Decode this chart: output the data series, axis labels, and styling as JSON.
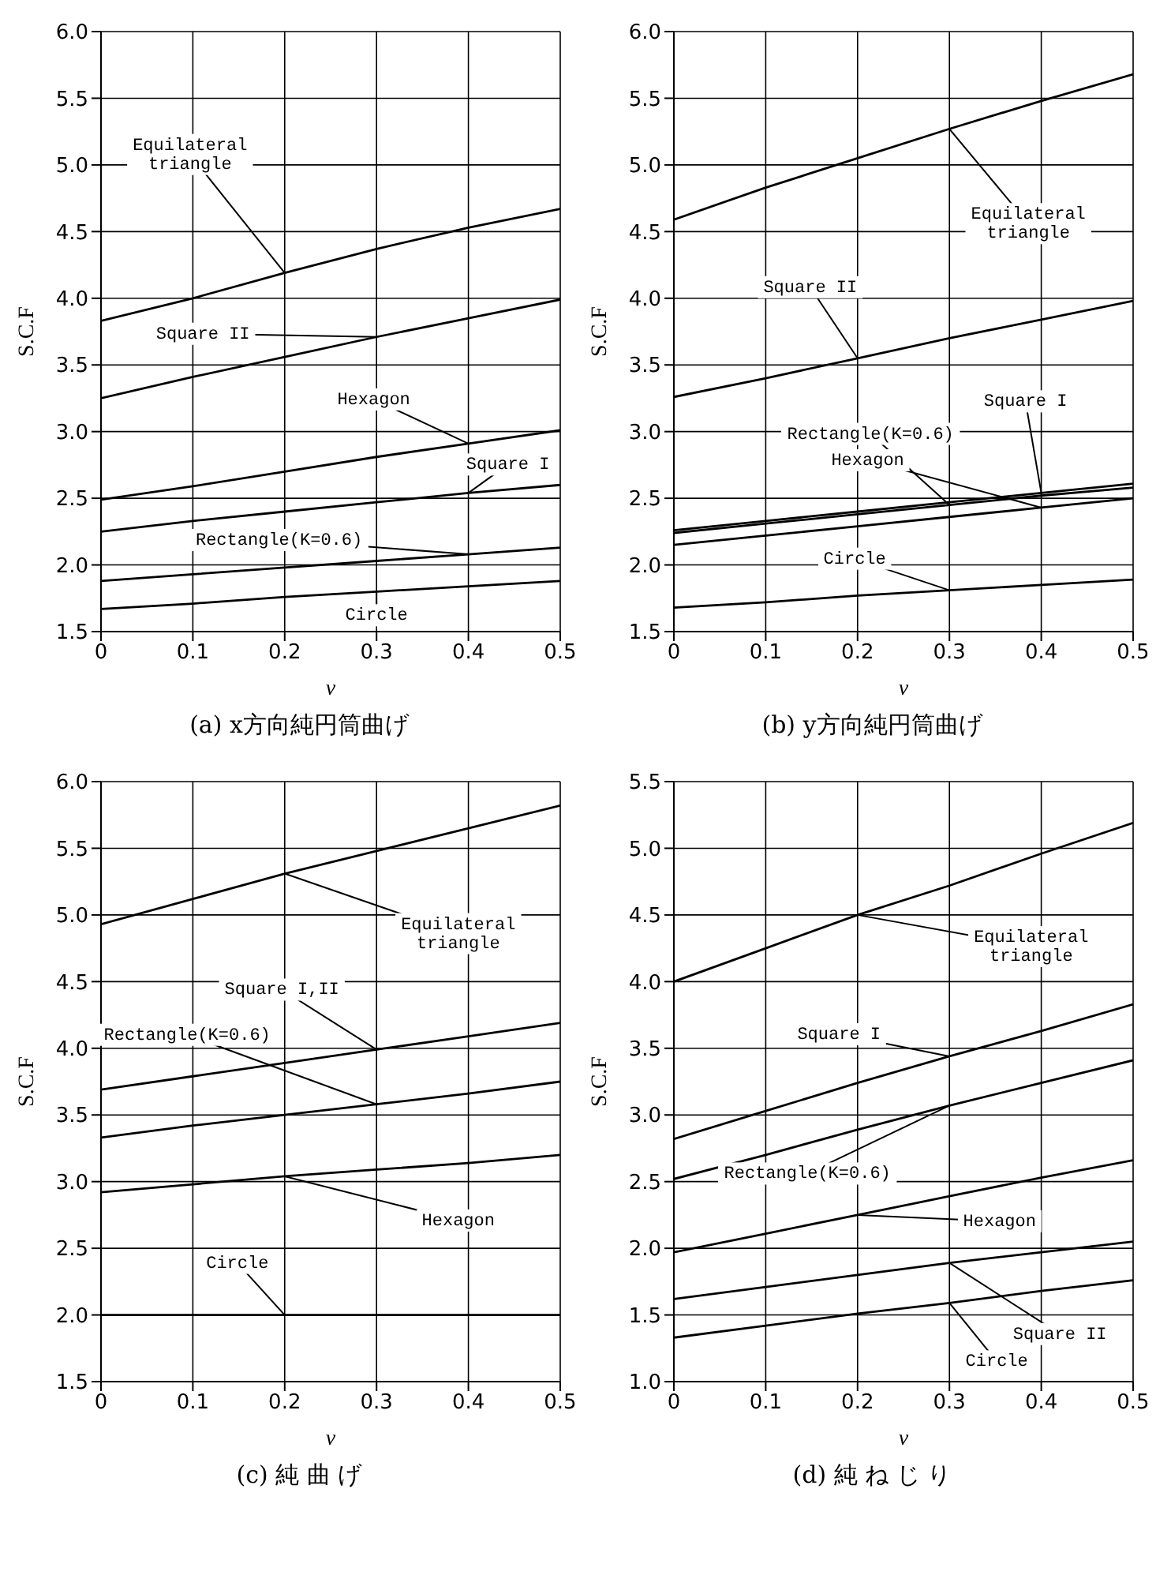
{
  "chart_data": [
    {
      "type": "line",
      "title": "(a) x方向純円筒曲げ",
      "xlabel": "ν",
      "ylabel": "S.C.F",
      "x": [
        0,
        0.1,
        0.2,
        0.3,
        0.4,
        0.5
      ],
      "xlim": [
        0,
        0.5
      ],
      "ylim": [
        1.5,
        6.0
      ],
      "xticks": [
        0,
        0.1,
        0.2,
        0.3,
        0.4,
        0.5
      ],
      "yticks": [
        1.5,
        {
          "value": 2,
          "label": "2.0"
        },
        2.5,
        {
          "value": 3,
          "label": "3.0"
        },
        3.5,
        {
          "value": 4,
          "label": "4.0"
        },
        4.5,
        {
          "value": 5,
          "label": "5.0"
        },
        5.5,
        {
          "value": 6,
          "label": "6.0"
        }
      ],
      "grid": true,
      "series": [
        {
          "name": "Equilateral triangle",
          "color": "#000000",
          "values": [
            3.83,
            4.0,
            4.19,
            4.37,
            4.53,
            4.67
          ]
        },
        {
          "name": "Square II",
          "color": "#000000",
          "values": [
            3.25,
            3.41,
            3.56,
            3.71,
            3.85,
            3.99
          ]
        },
        {
          "name": "Hexagon",
          "color": "#000000",
          "values": [
            2.49,
            2.59,
            2.7,
            2.81,
            2.91,
            3.01
          ]
        },
        {
          "name": "Square I",
          "color": "#000000",
          "values": [
            2.25,
            2.33,
            2.4,
            2.47,
            2.54,
            2.6
          ]
        },
        {
          "name": "Rectangle(K=0.6)",
          "color": "#000000",
          "values": [
            1.88,
            1.93,
            1.98,
            2.03,
            2.08,
            2.13
          ]
        },
        {
          "name": "Circle",
          "color": "#000000",
          "values": [
            1.67,
            1.71,
            1.76,
            1.8,
            1.84,
            1.88
          ]
        }
      ]
    },
    {
      "type": "line",
      "title": "(b) y方向純円筒曲げ",
      "xlabel": "ν",
      "ylabel": "S.C.F",
      "x": [
        0,
        0.1,
        0.2,
        0.3,
        0.4,
        0.5
      ],
      "xlim": [
        0,
        0.5
      ],
      "ylim": [
        1.5,
        6.0
      ],
      "xticks": [
        0,
        0.1,
        0.2,
        0.3,
        0.4,
        0.5
      ],
      "yticks": [
        1.5,
        {
          "value": 2,
          "label": "2.0"
        },
        2.5,
        {
          "value": 3,
          "label": "3.0"
        },
        3.5,
        {
          "value": 4,
          "label": "4.0"
        },
        4.5,
        {
          "value": 5,
          "label": "5.0"
        },
        5.5,
        {
          "value": 6,
          "label": "6.0"
        }
      ],
      "grid": true,
      "series": [
        {
          "name": "Equilateral triangle",
          "color": "#000000",
          "values": [
            4.59,
            4.83,
            5.05,
            5.27,
            5.48,
            5.68
          ]
        },
        {
          "name": "Square II",
          "color": "#000000",
          "values": [
            3.26,
            3.4,
            3.55,
            3.7,
            3.84,
            3.98
          ]
        },
        {
          "name": "Square I",
          "color": "#000000",
          "values": [
            2.26,
            2.33,
            2.4,
            2.47,
            2.54,
            2.61
          ]
        },
        {
          "name": "Rectangle(K=0.6)",
          "color": "#000000",
          "values": [
            2.24,
            2.31,
            2.38,
            2.45,
            2.52,
            2.58
          ]
        },
        {
          "name": "Hexagon",
          "color": "#000000",
          "values": [
            2.15,
            2.22,
            2.29,
            2.36,
            2.43,
            2.5
          ]
        },
        {
          "name": "Circle",
          "color": "#000000",
          "values": [
            1.68,
            1.72,
            1.77,
            1.81,
            1.85,
            1.89
          ]
        }
      ]
    },
    {
      "type": "line",
      "title": "(c) 純 曲 げ",
      "xlabel": "ν",
      "ylabel": "S.C.F",
      "x": [
        0,
        0.1,
        0.2,
        0.3,
        0.4,
        0.5
      ],
      "xlim": [
        0,
        0.5
      ],
      "ylim": [
        1.5,
        6.0
      ],
      "xticks": [
        0,
        0.1,
        0.2,
        0.3,
        0.4,
        0.5
      ],
      "yticks": [
        1.5,
        {
          "value": 2,
          "label": "2.0"
        },
        2.5,
        {
          "value": 3,
          "label": "3.0"
        },
        3.5,
        {
          "value": 4,
          "label": "4.0"
        },
        4.5,
        {
          "value": 5,
          "label": "5.0"
        },
        5.5,
        {
          "value": 6,
          "label": "6.0"
        }
      ],
      "grid": true,
      "series": [
        {
          "name": "Equilateral triangle",
          "color": "#000000",
          "values": [
            4.93,
            5.12,
            5.31,
            5.48,
            5.65,
            5.82
          ]
        },
        {
          "name": "Square I,II",
          "color": "#000000",
          "values": [
            3.69,
            3.79,
            3.89,
            3.99,
            4.09,
            4.19
          ]
        },
        {
          "name": "Rectangle(K=0.6)",
          "color": "#000000",
          "values": [
            3.33,
            3.42,
            3.5,
            3.58,
            3.66,
            3.75
          ]
        },
        {
          "name": "Hexagon",
          "color": "#000000",
          "values": [
            2.92,
            2.98,
            3.04,
            3.09,
            3.14,
            3.2
          ]
        },
        {
          "name": "Circle",
          "color": "#000000",
          "values": [
            2.0,
            2.0,
            2.0,
            2.0,
            2.0,
            2.0
          ]
        }
      ]
    },
    {
      "type": "line",
      "title": "(d) 純 ね じ り",
      "xlabel": "ν",
      "ylabel": "S.C.F",
      "x": [
        0,
        0.1,
        0.2,
        0.3,
        0.4,
        0.5
      ],
      "xlim": [
        0,
        0.5
      ],
      "ylim": [
        1.0,
        5.5
      ],
      "xticks": [
        0,
        0.1,
        0.2,
        0.3,
        0.4,
        0.5
      ],
      "yticks": [
        {
          "value": 1,
          "label": "1.0"
        },
        1.5,
        {
          "value": 2,
          "label": "2.0"
        },
        2.5,
        {
          "value": 3,
          "label": "3.0"
        },
        3.5,
        {
          "value": 4,
          "label": "4.0"
        },
        4.5,
        {
          "value": 5,
          "label": "5.0"
        },
        5.5
      ],
      "grid": true,
      "series": [
        {
          "name": "Equilateral triangle",
          "color": "#000000",
          "values": [
            4.0,
            4.25,
            4.5,
            4.72,
            4.96,
            5.19
          ]
        },
        {
          "name": "Square I",
          "color": "#000000",
          "values": [
            2.82,
            3.03,
            3.24,
            3.44,
            3.63,
            3.83
          ]
        },
        {
          "name": "Rectangle(K=0.6)",
          "color": "#000000",
          "values": [
            2.52,
            2.7,
            2.89,
            3.07,
            3.24,
            3.41
          ]
        },
        {
          "name": "Hexagon",
          "color": "#000000",
          "values": [
            1.97,
            2.11,
            2.25,
            2.39,
            2.53,
            2.66
          ]
        },
        {
          "name": "Square II",
          "color": "#000000",
          "values": [
            1.62,
            1.71,
            1.8,
            1.89,
            1.97,
            2.05
          ]
        },
        {
          "name": "Circle",
          "color": "#000000",
          "values": [
            1.33,
            1.42,
            1.51,
            1.59,
            1.68,
            1.76
          ]
        }
      ]
    }
  ]
}
